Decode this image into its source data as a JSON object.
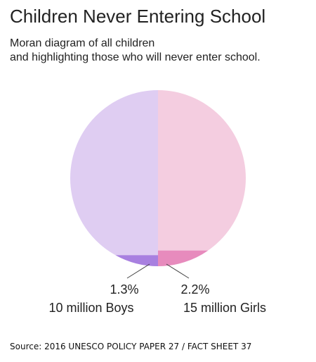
{
  "title": "Children Never Entering School",
  "subtitle": {
    "line1": "Moran diagram of all children",
    "line2": "and highlighting those who will never enter school."
  },
  "source": "Source: 2016 UNESCO POLICY PAPER 27 / FACT SHEET 37",
  "chart_data": {
    "type": "pie",
    "title": "Children Never Entering School",
    "slices": [
      {
        "group": "girls",
        "value": 50,
        "color": "#f4cde0"
      },
      {
        "group": "girls-never",
        "value": 2.2,
        "color": "#e78bbd",
        "percent_label": "2.2%",
        "count_label": "15 million Girls"
      },
      {
        "group": "boys-never",
        "value": 1.3,
        "color": "#a880e0",
        "percent_label": "1.3%",
        "count_label": "10 million Boys"
      },
      {
        "group": "boys",
        "value": 50,
        "color": "#dfcdf2"
      }
    ],
    "callout_line_color": "#444444"
  }
}
